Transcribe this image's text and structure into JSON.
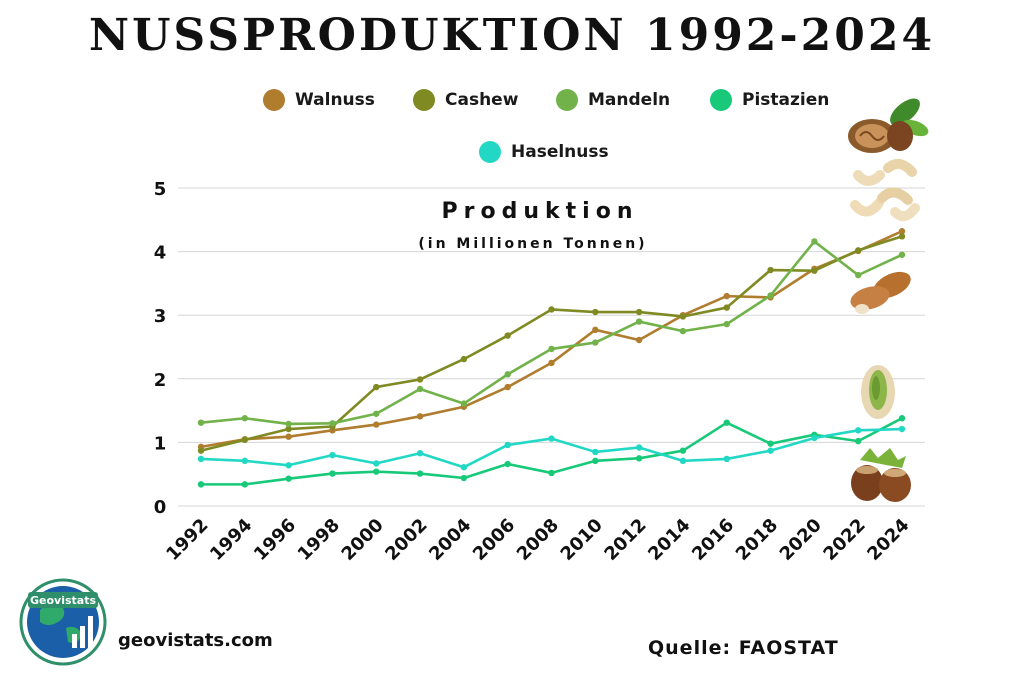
{
  "title": "NUSSPRODUKTION 1992-2024",
  "footer": {
    "logo_text": "Geovistats",
    "website": "geovistats.com",
    "source": "Quelle: FAOSTAT"
  },
  "colors": {
    "Walnuss": "#b07d2f",
    "Cashew": "#7f8a23",
    "Mandeln": "#72b24a",
    "Pistazien": "#17c979",
    "Haselnuss": "#22d8c5"
  },
  "icons": [
    "walnut-icon",
    "cashew-icon",
    "almond-icon",
    "pistachio-icon",
    "hazelnut-icon"
  ],
  "chart_data": {
    "type": "line",
    "title": "Produktion",
    "subtitle": "(in Millionen Tonnen)",
    "xlabel": "",
    "ylabel": "",
    "ylim": [
      0,
      5
    ],
    "yticks": [
      0,
      1,
      2,
      3,
      4,
      5
    ],
    "grid": true,
    "legend": "top",
    "x": [
      "1992",
      "1994",
      "1996",
      "1998",
      "2000",
      "2002",
      "2004",
      "2006",
      "2008",
      "2010",
      "2012",
      "2014",
      "2016",
      "2018",
      "2020",
      "2022",
      "2024"
    ],
    "series": [
      {
        "name": "Walnuss",
        "values": [
          0.93,
          1.05,
          1.09,
          1.19,
          1.28,
          1.41,
          1.56,
          1.87,
          2.25,
          2.77,
          2.61,
          3.0,
          3.3,
          3.28,
          3.73,
          4.01,
          4.32
        ]
      },
      {
        "name": "Cashew",
        "values": [
          0.87,
          1.04,
          1.21,
          1.25,
          1.87,
          1.99,
          2.31,
          2.68,
          3.09,
          3.05,
          3.05,
          2.98,
          3.12,
          3.71,
          3.7,
          4.02,
          4.24
        ]
      },
      {
        "name": "Mandeln",
        "values": [
          1.31,
          1.38,
          1.29,
          1.3,
          1.45,
          1.84,
          1.61,
          2.07,
          2.47,
          2.57,
          2.9,
          2.75,
          2.86,
          3.31,
          4.16,
          3.63,
          3.95
        ]
      },
      {
        "name": "Pistazien",
        "values": [
          0.34,
          0.34,
          0.43,
          0.51,
          0.54,
          0.51,
          0.44,
          0.66,
          0.52,
          0.71,
          0.75,
          0.87,
          1.31,
          0.98,
          1.12,
          1.02,
          1.38
        ]
      },
      {
        "name": "Haselnuss",
        "values": [
          0.74,
          0.71,
          0.64,
          0.8,
          0.67,
          0.83,
          0.61,
          0.96,
          1.06,
          0.85,
          0.92,
          0.71,
          0.74,
          0.87,
          1.07,
          1.19,
          1.21
        ]
      }
    ]
  }
}
